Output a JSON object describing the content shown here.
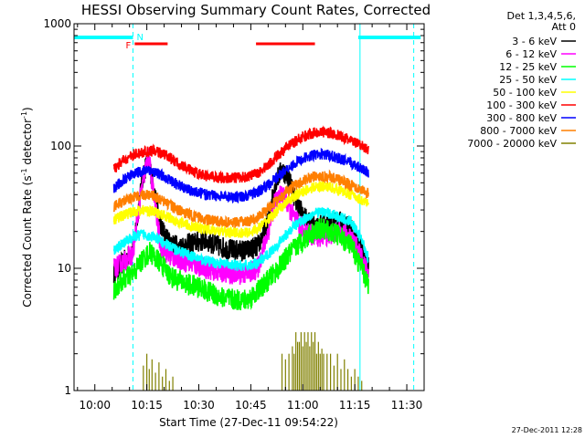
{
  "chart_data": {
    "type": "line",
    "title": "HESSI Observing Summary Count Rates, Corrected",
    "xlabel": "Start Time (27-Dec-11 09:54:22)",
    "ylabel": "Corrected Count Rate (s",
    "ylabel_sup1": "-1",
    "ylabel_mid": " detector",
    "ylabel_sup2": "-1",
    "ylabel_end": ")",
    "yscale": "log",
    "ylim": [
      1,
      1000
    ],
    "xlim_min": [
      594,
      695
    ],
    "x_ticks": [
      {
        "m": 600,
        "label": "10:00"
      },
      {
        "m": 615,
        "label": "10:15"
      },
      {
        "m": 630,
        "label": "10:30"
      },
      {
        "m": 645,
        "label": "10:45"
      },
      {
        "m": 660,
        "label": "11:00"
      },
      {
        "m": 675,
        "label": "11:15"
      },
      {
        "m": 690,
        "label": "11:30"
      }
    ],
    "y_ticks": [
      {
        "v": 1000,
        "label": "1000"
      },
      {
        "v": 100,
        "label": "100"
      },
      {
        "v": 10,
        "label": "10"
      },
      {
        "v": 1,
        "label": "1"
      }
    ],
    "legend": {
      "header1": "Det 1,3,4,5,6,",
      "header2": "Att 0",
      "position": "right"
    },
    "flags": {
      "F_label": "F",
      "N_label": "N",
      "flare_bars": [
        [
          611.5,
          621
        ],
        [
          646.5,
          663.5
        ]
      ],
      "night_segments": [
        [
          594,
          611
        ],
        [
          676,
          694
        ]
      ],
      "night_start_lines": [
        611,
        692
      ],
      "solid_lines": [
        676.5
      ]
    },
    "series": [
      {
        "name": "3 - 6 keV",
        "color": "#000000",
        "x_range": [
          605.5,
          679
        ],
        "points": [
          [
            605.5,
            9
          ],
          [
            608,
            11
          ],
          [
            611,
            14
          ],
          [
            612.5,
            30
          ],
          [
            614,
            60
          ],
          [
            615.5,
            78
          ],
          [
            617,
            45
          ],
          [
            619,
            22
          ],
          [
            621,
            17
          ],
          [
            624,
            15
          ],
          [
            628,
            16
          ],
          [
            632,
            17
          ],
          [
            636,
            15
          ],
          [
            640,
            14
          ],
          [
            644,
            14
          ],
          [
            647,
            15
          ],
          [
            650,
            24
          ],
          [
            652,
            50
          ],
          [
            654,
            64
          ],
          [
            656,
            55
          ],
          [
            658,
            35
          ],
          [
            661,
            25
          ],
          [
            664,
            22
          ],
          [
            668,
            23
          ],
          [
            671,
            24
          ],
          [
            674,
            21
          ],
          [
            677,
            14
          ],
          [
            679,
            10
          ]
        ]
      },
      {
        "name": "6 - 12 keV",
        "color": "#ff00ff",
        "x_range": [
          605.5,
          679
        ],
        "points": [
          [
            605.5,
            10
          ],
          [
            608,
            11
          ],
          [
            611,
            13
          ],
          [
            612.5,
            28
          ],
          [
            614,
            55
          ],
          [
            615.5,
            80
          ],
          [
            617,
            40
          ],
          [
            619,
            15
          ],
          [
            621,
            13
          ],
          [
            624,
            12
          ],
          [
            628,
            11
          ],
          [
            632,
            10
          ],
          [
            636,
            9.5
          ],
          [
            640,
            9
          ],
          [
            644,
            9
          ],
          [
            647,
            10
          ],
          [
            650,
            20
          ],
          [
            652,
            35
          ],
          [
            654,
            40
          ],
          [
            656,
            32
          ],
          [
            658,
            24
          ],
          [
            661,
            20
          ],
          [
            664,
            18
          ],
          [
            668,
            19
          ],
          [
            671,
            20
          ],
          [
            674,
            18
          ],
          [
            677,
            12
          ],
          [
            679,
            9
          ]
        ]
      },
      {
        "name": "12 - 25 keV",
        "color": "#00ff00",
        "x_range": [
          605.5,
          679
        ],
        "points": [
          [
            605.5,
            6.5
          ],
          [
            608,
            8
          ],
          [
            611,
            9
          ],
          [
            614,
            12
          ],
          [
            616,
            13.5
          ],
          [
            619,
            11
          ],
          [
            622,
            8.5
          ],
          [
            626,
            7.5
          ],
          [
            630,
            7
          ],
          [
            635,
            6
          ],
          [
            640,
            5.5
          ],
          [
            644,
            5.5
          ],
          [
            647,
            6.5
          ],
          [
            650,
            8
          ],
          [
            653,
            10
          ],
          [
            656,
            13
          ],
          [
            659,
            16
          ],
          [
            662,
            19
          ],
          [
            665,
            21
          ],
          [
            668,
            20
          ],
          [
            671,
            18
          ],
          [
            674,
            15
          ],
          [
            677,
            10
          ],
          [
            679,
            7
          ]
        ]
      },
      {
        "name": "25 - 50 keV",
        "color": "#00ffff",
        "x_range": [
          605.5,
          679
        ],
        "points": [
          [
            605.5,
            14
          ],
          [
            608,
            16
          ],
          [
            611,
            18
          ],
          [
            614,
            19
          ],
          [
            617,
            18
          ],
          [
            620,
            16
          ],
          [
            624,
            14
          ],
          [
            628,
            12.5
          ],
          [
            632,
            11.5
          ],
          [
            636,
            11
          ],
          [
            640,
            10.5
          ],
          [
            644,
            10.5
          ],
          [
            647,
            11
          ],
          [
            650,
            13
          ],
          [
            653,
            16
          ],
          [
            656,
            20
          ],
          [
            659,
            24
          ],
          [
            662,
            27
          ],
          [
            665,
            29
          ],
          [
            668,
            28
          ],
          [
            671,
            26
          ],
          [
            674,
            24
          ],
          [
            677,
            17
          ],
          [
            679,
            12
          ]
        ]
      },
      {
        "name": "50 - 100 keV",
        "color": "#ffff00",
        "x_range": [
          605.5,
          679
        ],
        "points": [
          [
            605.5,
            25
          ],
          [
            608,
            27
          ],
          [
            611,
            29
          ],
          [
            614,
            30
          ],
          [
            617,
            29
          ],
          [
            620,
            27
          ],
          [
            624,
            24
          ],
          [
            628,
            22
          ],
          [
            632,
            21
          ],
          [
            636,
            20
          ],
          [
            640,
            19.5
          ],
          [
            644,
            19.5
          ],
          [
            647,
            21
          ],
          [
            650,
            25
          ],
          [
            653,
            30
          ],
          [
            656,
            36
          ],
          [
            659,
            41
          ],
          [
            662,
            45
          ],
          [
            665,
            47
          ],
          [
            668,
            46
          ],
          [
            671,
            43
          ],
          [
            674,
            40
          ],
          [
            677,
            36
          ],
          [
            679,
            33
          ]
        ]
      },
      {
        "name": "100 - 300 keV",
        "color": "#ff0000",
        "x_range": [
          605.5,
          679
        ],
        "points": [
          [
            605.5,
            65
          ],
          [
            608,
            75
          ],
          [
            611,
            84
          ],
          [
            614,
            89
          ],
          [
            617,
            91
          ],
          [
            620,
            86
          ],
          [
            624,
            72
          ],
          [
            628,
            62
          ],
          [
            632,
            57
          ],
          [
            636,
            55
          ],
          [
            640,
            55
          ],
          [
            644,
            56
          ],
          [
            647,
            60
          ],
          [
            650,
            70
          ],
          [
            653,
            85
          ],
          [
            656,
            100
          ],
          [
            659,
            115
          ],
          [
            662,
            126
          ],
          [
            665,
            131
          ],
          [
            668,
            128
          ],
          [
            671,
            120
          ],
          [
            674,
            110
          ],
          [
            677,
            100
          ],
          [
            679,
            93
          ]
        ]
      },
      {
        "name": "300 - 800 keV",
        "color": "#0000ff",
        "x_range": [
          605.5,
          679
        ],
        "points": [
          [
            605.5,
            45
          ],
          [
            608,
            52
          ],
          [
            611,
            59
          ],
          [
            614,
            63
          ],
          [
            617,
            62
          ],
          [
            620,
            56
          ],
          [
            624,
            48
          ],
          [
            628,
            43
          ],
          [
            632,
            40
          ],
          [
            636,
            39
          ],
          [
            640,
            38.5
          ],
          [
            644,
            39
          ],
          [
            647,
            42
          ],
          [
            650,
            48
          ],
          [
            653,
            57
          ],
          [
            656,
            67
          ],
          [
            659,
            76
          ],
          [
            662,
            83
          ],
          [
            665,
            86
          ],
          [
            668,
            84
          ],
          [
            671,
            78
          ],
          [
            674,
            72
          ],
          [
            677,
            66
          ],
          [
            679,
            61
          ]
        ]
      },
      {
        "name": "800 - 7000 keV",
        "color": "#ff7f00",
        "x_range": [
          605.5,
          679
        ],
        "points": [
          [
            605.5,
            32
          ],
          [
            608,
            35
          ],
          [
            611,
            38
          ],
          [
            614,
            40
          ],
          [
            617,
            39
          ],
          [
            620,
            35
          ],
          [
            624,
            30
          ],
          [
            628,
            27
          ],
          [
            632,
            25
          ],
          [
            636,
            24
          ],
          [
            640,
            23.5
          ],
          [
            644,
            24
          ],
          [
            647,
            26
          ],
          [
            650,
            31
          ],
          [
            653,
            37
          ],
          [
            656,
            44
          ],
          [
            659,
            50
          ],
          [
            662,
            55
          ],
          [
            665,
            57
          ],
          [
            668,
            56
          ],
          [
            671,
            52
          ],
          [
            674,
            48
          ],
          [
            677,
            44
          ],
          [
            679,
            41
          ]
        ]
      },
      {
        "name": "7000 - 20000 keV",
        "color": "#808000",
        "type": "spikes",
        "base": 1,
        "spikes": [
          [
            614,
            1.6
          ],
          [
            615,
            2
          ],
          [
            615.7,
            1.5
          ],
          [
            616.5,
            1.8
          ],
          [
            617.5,
            1.4
          ],
          [
            618.5,
            1.7
          ],
          [
            619.5,
            1.3
          ],
          [
            620.5,
            1.5
          ],
          [
            621.5,
            1.2
          ],
          [
            622.5,
            1.3
          ],
          [
            654,
            2
          ],
          [
            655,
            1.8
          ],
          [
            656,
            2
          ],
          [
            657,
            2.3
          ],
          [
            657.5,
            2
          ],
          [
            658,
            3
          ],
          [
            658.5,
            2.5
          ],
          [
            659,
            2.5
          ],
          [
            659.5,
            3
          ],
          [
            660,
            2.3
          ],
          [
            660.5,
            3
          ],
          [
            661,
            2.5
          ],
          [
            661.5,
            3
          ],
          [
            662,
            2.3
          ],
          [
            662.5,
            3
          ],
          [
            663,
            2.5
          ],
          [
            663.5,
            3
          ],
          [
            664,
            2
          ],
          [
            664.5,
            2.5
          ],
          [
            665,
            2
          ],
          [
            665.5,
            2.2
          ],
          [
            666,
            2
          ],
          [
            667,
            2
          ],
          [
            668,
            2
          ],
          [
            669,
            1.6
          ],
          [
            670,
            2
          ],
          [
            671,
            1.5
          ],
          [
            672,
            1.8
          ],
          [
            673,
            1.5
          ],
          [
            674,
            1.3
          ],
          [
            675,
            1.5
          ],
          [
            676,
            1.3
          ],
          [
            677,
            1.2
          ]
        ]
      }
    ]
  },
  "footer": {
    "timestamp": "27-Dec-2011 12:28"
  }
}
